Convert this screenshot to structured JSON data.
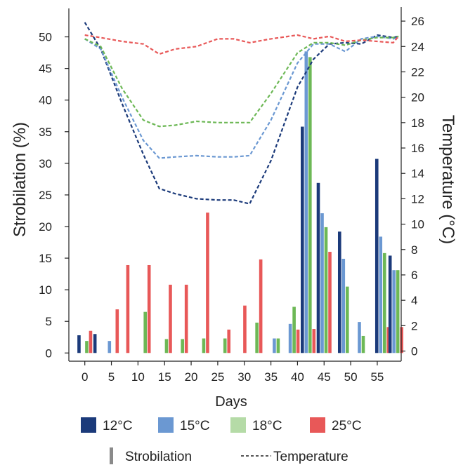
{
  "chart_data": {
    "type": "bar",
    "x_label": "Days",
    "y_label": "Strobilation (%)",
    "y2_label": "Temperature (°C)",
    "x_ticks": [
      0,
      5,
      10,
      15,
      20,
      25,
      30,
      35,
      40,
      45,
      50,
      55
    ],
    "y_ticks": [
      0,
      5,
      10,
      15,
      20,
      25,
      30,
      35,
      40,
      45,
      50
    ],
    "y2_ticks": [
      0,
      2,
      4,
      6,
      8,
      10,
      12,
      14,
      16,
      18,
      20,
      22,
      24,
      26
    ],
    "xlim": [
      -3,
      59.5
    ],
    "ylim": [
      -1.3,
      54.5
    ],
    "y2lim": [
      -0.8,
      27.0
    ],
    "series_colors": {
      "12°C": "#1b3a7a",
      "15°C": "#6b98d2",
      "18°C": "#6db856",
      "25°C": "#e85858"
    },
    "legend": {
      "entries": [
        {
          "label": "12°C",
          "color": "#1b3a7a"
        },
        {
          "label": "15°C",
          "color": "#6b98d2"
        },
        {
          "label": "18°C",
          "color": "#b5dba7"
        },
        {
          "label": "25°C",
          "color": "#e85858"
        }
      ],
      "kind_entries": [
        {
          "label": "Strobilation",
          "style": "bar"
        },
        {
          "label": "Temperature",
          "style": "dashed"
        }
      ]
    },
    "bar_groups": [
      {
        "x": 0,
        "values": {
          "12°C": 2.8,
          "15°C": 0,
          "18°C": 1.9,
          "25°C": 3.5
        }
      },
      {
        "x": 3,
        "values": {
          "12°C": 3.0,
          "15°C": 0,
          "18°C": 0,
          "25°C": 0
        }
      },
      {
        "x": 5,
        "values": {
          "12°C": 0,
          "15°C": 1.9,
          "18°C": 0,
          "25°C": 6.9
        }
      },
      {
        "x": 7,
        "values": {
          "12°C": 0,
          "15°C": 0,
          "18°C": 0,
          "25°C": 13.9
        }
      },
      {
        "x": 11,
        "values": {
          "12°C": 0,
          "15°C": 0,
          "18°C": 6.5,
          "25°C": 13.9
        }
      },
      {
        "x": 15,
        "values": {
          "12°C": 0,
          "15°C": 0,
          "18°C": 2.2,
          "25°C": 10.8
        }
      },
      {
        "x": 18,
        "values": {
          "12°C": 0,
          "15°C": 0,
          "18°C": 2.2,
          "25°C": 10.8
        }
      },
      {
        "x": 22,
        "values": {
          "12°C": 0,
          "15°C": 0,
          "18°C": 2.3,
          "25°C": 22.2
        }
      },
      {
        "x": 26,
        "values": {
          "12°C": 0,
          "15°C": 0,
          "18°C": 2.3,
          "25°C": 3.7
        }
      },
      {
        "x": 29,
        "values": {
          "12°C": 0,
          "15°C": 0,
          "18°C": 0,
          "25°C": 7.5
        }
      },
      {
        "x": 32,
        "values": {
          "12°C": 0,
          "15°C": 0,
          "18°C": 4.8,
          "25°C": 14.8
        }
      },
      {
        "x": 36,
        "values": {
          "12°C": 0,
          "15°C": 2.3,
          "18°C": 2.3,
          "25°C": 0
        }
      },
      {
        "x": 39,
        "values": {
          "12°C": 0,
          "15°C": 4.6,
          "18°C": 7.3,
          "25°C": 3.7
        }
      },
      {
        "x": 42,
        "values": {
          "12°C": 35.8,
          "15°C": 47.7,
          "18°C": 46.8,
          "25°C": 3.8
        }
      },
      {
        "x": 45,
        "values": {
          "12°C": 26.9,
          "15°C": 22.1,
          "18°C": 19.9,
          "25°C": 16.0
        }
      },
      {
        "x": 49,
        "values": {
          "12°C": 19.2,
          "15°C": 14.9,
          "18°C": 10.5,
          "25°C": 0
        }
      },
      {
        "x": 52,
        "values": {
          "12°C": 0,
          "15°C": 4.9,
          "18°C": 2.7,
          "25°C": 0
        }
      },
      {
        "x": 56,
        "values": {
          "12°C": 30.7,
          "15°C": 18.4,
          "18°C": 15.8,
          "25°C": 4.1
        }
      },
      {
        "x": 58.5,
        "values": {
          "12°C": 15.4,
          "15°C": 13.1,
          "18°C": 13.1,
          "25°C": 4.1
        }
      }
    ],
    "temperature_series": [
      {
        "name": "12°C",
        "color": "#1b3a7a",
        "points": [
          [
            0,
            25.9
          ],
          [
            3,
            23.8
          ],
          [
            7,
            19.5
          ],
          [
            11,
            15.5
          ],
          [
            14,
            12.8
          ],
          [
            17,
            12.4
          ],
          [
            21,
            12.0
          ],
          [
            25,
            11.9
          ],
          [
            28,
            11.9
          ],
          [
            31,
            11.6
          ],
          [
            35,
            15.0
          ],
          [
            40,
            20.8
          ],
          [
            43,
            23.0
          ],
          [
            46,
            24.2
          ],
          [
            49,
            24.3
          ],
          [
            52,
            24.2
          ],
          [
            55,
            24.9
          ],
          [
            58,
            24.7
          ],
          [
            59,
            24.8
          ]
        ]
      },
      {
        "name": "15°C",
        "color": "#6b98d2",
        "points": [
          [
            0,
            24.6
          ],
          [
            3,
            23.8
          ],
          [
            7,
            20.0
          ],
          [
            11,
            16.6
          ],
          [
            14,
            15.2
          ],
          [
            17,
            15.3
          ],
          [
            21,
            15.4
          ],
          [
            25,
            15.3
          ],
          [
            28,
            15.3
          ],
          [
            31,
            15.4
          ],
          [
            35,
            18.2
          ],
          [
            40,
            22.7
          ],
          [
            43,
            24.2
          ],
          [
            46,
            24.2
          ],
          [
            49,
            23.6
          ],
          [
            52,
            24.6
          ],
          [
            55,
            24.8
          ],
          [
            58,
            24.6
          ],
          [
            59,
            24.7
          ]
        ]
      },
      {
        "name": "18°C",
        "color": "#6db856",
        "points": [
          [
            0,
            24.6
          ],
          [
            3,
            24.0
          ],
          [
            7,
            20.7
          ],
          [
            11,
            18.2
          ],
          [
            14,
            17.7
          ],
          [
            17,
            17.8
          ],
          [
            21,
            18.1
          ],
          [
            25,
            18.0
          ],
          [
            28,
            18.0
          ],
          [
            31,
            18.0
          ],
          [
            35,
            20.3
          ],
          [
            40,
            23.5
          ],
          [
            43,
            24.3
          ],
          [
            46,
            24.3
          ],
          [
            49,
            24.1
          ],
          [
            52,
            24.5
          ],
          [
            55,
            24.7
          ],
          [
            58,
            24.7
          ],
          [
            59,
            24.8
          ]
        ]
      },
      {
        "name": "25°C",
        "color": "#e85858",
        "points": [
          [
            0,
            24.9
          ],
          [
            3,
            24.7
          ],
          [
            7,
            24.4
          ],
          [
            11,
            24.2
          ],
          [
            14,
            23.4
          ],
          [
            17,
            23.8
          ],
          [
            21,
            24.0
          ],
          [
            25,
            24.6
          ],
          [
            28,
            24.6
          ],
          [
            31,
            24.3
          ],
          [
            35,
            24.6
          ],
          [
            40,
            24.9
          ],
          [
            43,
            24.6
          ],
          [
            46,
            24.8
          ],
          [
            49,
            24.4
          ],
          [
            52,
            24.5
          ],
          [
            55,
            24.4
          ],
          [
            58,
            24.3
          ],
          [
            59,
            24.8
          ]
        ]
      }
    ]
  }
}
